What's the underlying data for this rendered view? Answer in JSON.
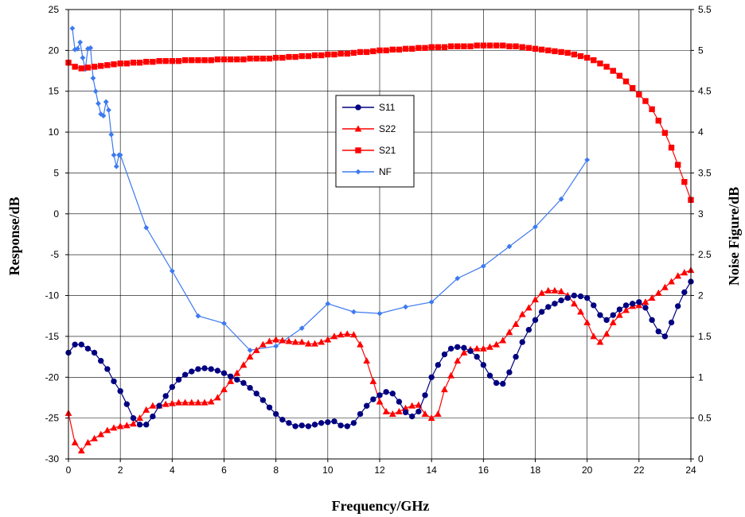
{
  "chart_data": {
    "type": "line",
    "xlabel": "Frequency/GHz",
    "ylabel": "Response/dB",
    "y2label": "Noise Figure/dB",
    "xlim": [
      0,
      24
    ],
    "ylim": [
      -30,
      25
    ],
    "y2lim": [
      0,
      5.5
    ],
    "x_ticks": [
      "0",
      "2",
      "4",
      "6",
      "8",
      "10",
      "12",
      "14",
      "16",
      "18",
      "20",
      "22",
      "24"
    ],
    "y_ticks": [
      "-30",
      "-25",
      "-20",
      "-15",
      "-10",
      "-5",
      "0",
      "5",
      "10",
      "15",
      "20",
      "25"
    ],
    "y2_ticks": [
      "0",
      "0.5",
      "1",
      "1.5",
      "2",
      "2.5",
      "3",
      "3.5",
      "4",
      "4.5",
      "5",
      "5.5"
    ],
    "grid": true,
    "legend_position": "center-left",
    "series": [
      {
        "name": "S11",
        "axis": "left",
        "color": "#000080",
        "marker": "circle",
        "x": [
          0,
          0.25,
          0.5,
          0.75,
          1,
          1.25,
          1.5,
          1.75,
          2,
          2.25,
          2.5,
          2.75,
          3,
          3.25,
          3.5,
          3.75,
          4,
          4.25,
          4.5,
          4.75,
          5,
          5.25,
          5.5,
          5.75,
          6,
          6.25,
          6.5,
          6.75,
          7,
          7.25,
          7.5,
          7.75,
          8,
          8.25,
          8.5,
          8.75,
          9,
          9.25,
          9.5,
          9.75,
          10,
          10.25,
          10.5,
          10.75,
          11,
          11.25,
          11.5,
          11.75,
          12,
          12.25,
          12.5,
          12.75,
          13,
          13.25,
          13.5,
          13.75,
          14,
          14.25,
          14.5,
          14.75,
          15,
          15.25,
          15.5,
          15.75,
          16,
          16.25,
          16.5,
          16.75,
          17,
          17.25,
          17.5,
          17.75,
          18,
          18.25,
          18.5,
          18.75,
          19,
          19.25,
          19.5,
          19.75,
          20,
          20.25,
          20.5,
          20.75,
          21,
          21.25,
          21.5,
          21.75,
          22,
          22.25,
          22.5,
          22.75,
          23,
          23.25,
          23.5,
          23.75,
          24
        ],
        "values": [
          -17,
          -16,
          -16,
          -16.5,
          -17,
          -18,
          -19,
          -20.5,
          -21.7,
          -23.3,
          -25,
          -25.8,
          -25.8,
          -24.8,
          -23.5,
          -22.3,
          -21.2,
          -20.3,
          -19.7,
          -19.3,
          -19,
          -18.9,
          -19,
          -19.2,
          -19.5,
          -19.9,
          -20.3,
          -20.7,
          -21.3,
          -22,
          -22.8,
          -23.7,
          -24.5,
          -25.2,
          -25.6,
          -26,
          -25.9,
          -26,
          -25.8,
          -25.6,
          -25.5,
          -25.4,
          -25.9,
          -26,
          -25.6,
          -24.5,
          -23.5,
          -22.7,
          -22.2,
          -21.8,
          -22,
          -23,
          -24.3,
          -24.8,
          -24.2,
          -22.2,
          -20,
          -18.5,
          -17.2,
          -16.5,
          -16.3,
          -16.4,
          -16.8,
          -17.5,
          -18.5,
          -19.8,
          -20.7,
          -20.8,
          -19.4,
          -17.5,
          -15.7,
          -14.2,
          -13,
          -12,
          -11.4,
          -11,
          -10.6,
          -10.3,
          -10,
          -10.1,
          -10.3,
          -11.2,
          -12.4,
          -13,
          -12.4,
          -11.7,
          -11.2,
          -11,
          -10.8,
          -11.5,
          -13,
          -14.4,
          -15,
          -13.3,
          -11.3,
          -9.6,
          -8.3
        ]
      },
      {
        "name": "S22",
        "axis": "left",
        "color": "#ff0000",
        "marker": "triangle",
        "x": [
          0,
          0.25,
          0.5,
          0.75,
          1,
          1.25,
          1.5,
          1.75,
          2,
          2.25,
          2.5,
          2.75,
          3,
          3.25,
          3.5,
          3.75,
          4,
          4.25,
          4.5,
          4.75,
          5,
          5.25,
          5.5,
          5.75,
          6,
          6.25,
          6.5,
          6.75,
          7,
          7.25,
          7.5,
          7.75,
          8,
          8.25,
          8.5,
          8.75,
          9,
          9.25,
          9.5,
          9.75,
          10,
          10.25,
          10.5,
          10.75,
          11,
          11.25,
          11.5,
          11.75,
          12,
          12.25,
          12.5,
          12.75,
          13,
          13.25,
          13.5,
          13.75,
          14,
          14.25,
          14.5,
          14.75,
          15,
          15.25,
          15.5,
          15.75,
          16,
          16.25,
          16.5,
          16.75,
          17,
          17.25,
          17.5,
          17.75,
          18,
          18.25,
          18.5,
          18.75,
          19,
          19.25,
          19.5,
          19.75,
          20,
          20.25,
          20.5,
          20.75,
          21,
          21.25,
          21.5,
          21.75,
          22,
          22.25,
          22.5,
          22.75,
          23,
          23.25,
          23.5,
          23.75,
          24
        ],
        "values": [
          -24.4,
          -28,
          -29,
          -28,
          -27.5,
          -27,
          -26.5,
          -26.2,
          -26,
          -25.9,
          -25.7,
          -25,
          -24,
          -23.5,
          -23.5,
          -23.3,
          -23.2,
          -23.1,
          -23.1,
          -23.1,
          -23.1,
          -23.1,
          -23,
          -22.5,
          -21.5,
          -20.5,
          -19.5,
          -18.5,
          -17.5,
          -16.7,
          -16,
          -15.6,
          -15.4,
          -15.5,
          -15.6,
          -15.7,
          -15.7,
          -15.9,
          -15.9,
          -15.7,
          -15.4,
          -15,
          -14.8,
          -14.7,
          -14.8,
          -16,
          -18,
          -20.5,
          -23,
          -24.2,
          -24.5,
          -24.2,
          -23.8,
          -23.5,
          -23.4,
          -24.5,
          -25,
          -24.5,
          -21.5,
          -19.8,
          -18,
          -17,
          -16.6,
          -16.5,
          -16.5,
          -16.3,
          -16,
          -15.5,
          -14.5,
          -13.5,
          -12.3,
          -11.5,
          -10.5,
          -9.7,
          -9.4,
          -9.4,
          -9.5,
          -10,
          -11,
          -12,
          -13.3,
          -15,
          -15.7,
          -14.7,
          -13.3,
          -12.4,
          -11.8,
          -11.3,
          -11.2,
          -10.8,
          -10.3,
          -9.7,
          -9,
          -8.3,
          -7.6,
          -7.2,
          -6.9
        ]
      },
      {
        "name": "S21",
        "axis": "left",
        "color": "#ff0000",
        "marker": "square",
        "x": [
          0,
          0.25,
          0.5,
          0.75,
          1,
          1.25,
          1.5,
          1.75,
          2,
          2.25,
          2.5,
          2.75,
          3,
          3.25,
          3.5,
          3.75,
          4,
          4.25,
          4.5,
          4.75,
          5,
          5.25,
          5.5,
          5.75,
          6,
          6.25,
          6.5,
          6.75,
          7,
          7.25,
          7.5,
          7.75,
          8,
          8.25,
          8.5,
          8.75,
          9,
          9.25,
          9.5,
          9.75,
          10,
          10.25,
          10.5,
          10.75,
          11,
          11.25,
          11.5,
          11.75,
          12,
          12.25,
          12.5,
          12.75,
          13,
          13.25,
          13.5,
          13.75,
          14,
          14.25,
          14.5,
          14.75,
          15,
          15.25,
          15.5,
          15.75,
          16,
          16.25,
          16.5,
          16.75,
          17,
          17.25,
          17.5,
          17.75,
          18,
          18.25,
          18.5,
          18.75,
          19,
          19.25,
          19.5,
          19.75,
          20,
          20.25,
          20.5,
          20.75,
          21,
          21.25,
          21.5,
          21.75,
          22,
          22.25,
          22.5,
          22.75,
          23,
          23.25,
          23.5,
          23.75,
          24
        ],
        "values": [
          18.5,
          18,
          17.8,
          17.9,
          18,
          18.1,
          18.2,
          18.3,
          18.4,
          18.4,
          18.5,
          18.5,
          18.6,
          18.6,
          18.7,
          18.7,
          18.7,
          18.7,
          18.8,
          18.8,
          18.8,
          18.8,
          18.8,
          18.9,
          18.9,
          18.9,
          18.9,
          18.9,
          19,
          19,
          19,
          19,
          19.1,
          19.1,
          19.2,
          19.2,
          19.3,
          19.3,
          19.4,
          19.4,
          19.5,
          19.5,
          19.6,
          19.6,
          19.7,
          19.8,
          19.8,
          19.9,
          20,
          20,
          20.1,
          20.1,
          20.2,
          20.2,
          20.3,
          20.3,
          20.4,
          20.4,
          20.4,
          20.5,
          20.5,
          20.5,
          20.5,
          20.6,
          20.6,
          20.6,
          20.6,
          20.6,
          20.5,
          20.5,
          20.4,
          20.3,
          20.2,
          20.1,
          20,
          19.9,
          19.8,
          19.7,
          19.5,
          19.3,
          19.1,
          18.8,
          18.4,
          18,
          17.5,
          16.9,
          16.2,
          15.4,
          14.6,
          13.8,
          12.8,
          11.4,
          9.9,
          8.1,
          6,
          3.9,
          1.7
        ]
      },
      {
        "name": "NF",
        "axis": "right",
        "color": "#3d7af0",
        "marker": "diamond",
        "x": [
          0.15,
          0.25,
          0.35,
          0.45,
          0.55,
          0.65,
          0.75,
          0.85,
          0.95,
          1.05,
          1.15,
          1.25,
          1.35,
          1.45,
          1.55,
          1.65,
          1.75,
          1.85,
          1.95,
          2,
          3,
          4,
          5,
          6,
          7,
          8,
          9,
          10,
          11,
          12,
          13,
          14,
          15,
          16,
          17,
          18,
          19,
          20
        ],
        "values": [
          5.27,
          5.01,
          5.02,
          5.1,
          4.91,
          4.77,
          5.02,
          5.03,
          4.66,
          4.5,
          4.35,
          4.22,
          4.2,
          4.37,
          4.27,
          3.97,
          3.72,
          3.58,
          3.72,
          3.72,
          2.83,
          2.3,
          1.75,
          1.66,
          1.33,
          1.38,
          1.6,
          1.9,
          1.8,
          1.78,
          1.86,
          1.92,
          2.21,
          2.36,
          2.6,
          2.84,
          3.18,
          3.66
        ]
      }
    ]
  }
}
